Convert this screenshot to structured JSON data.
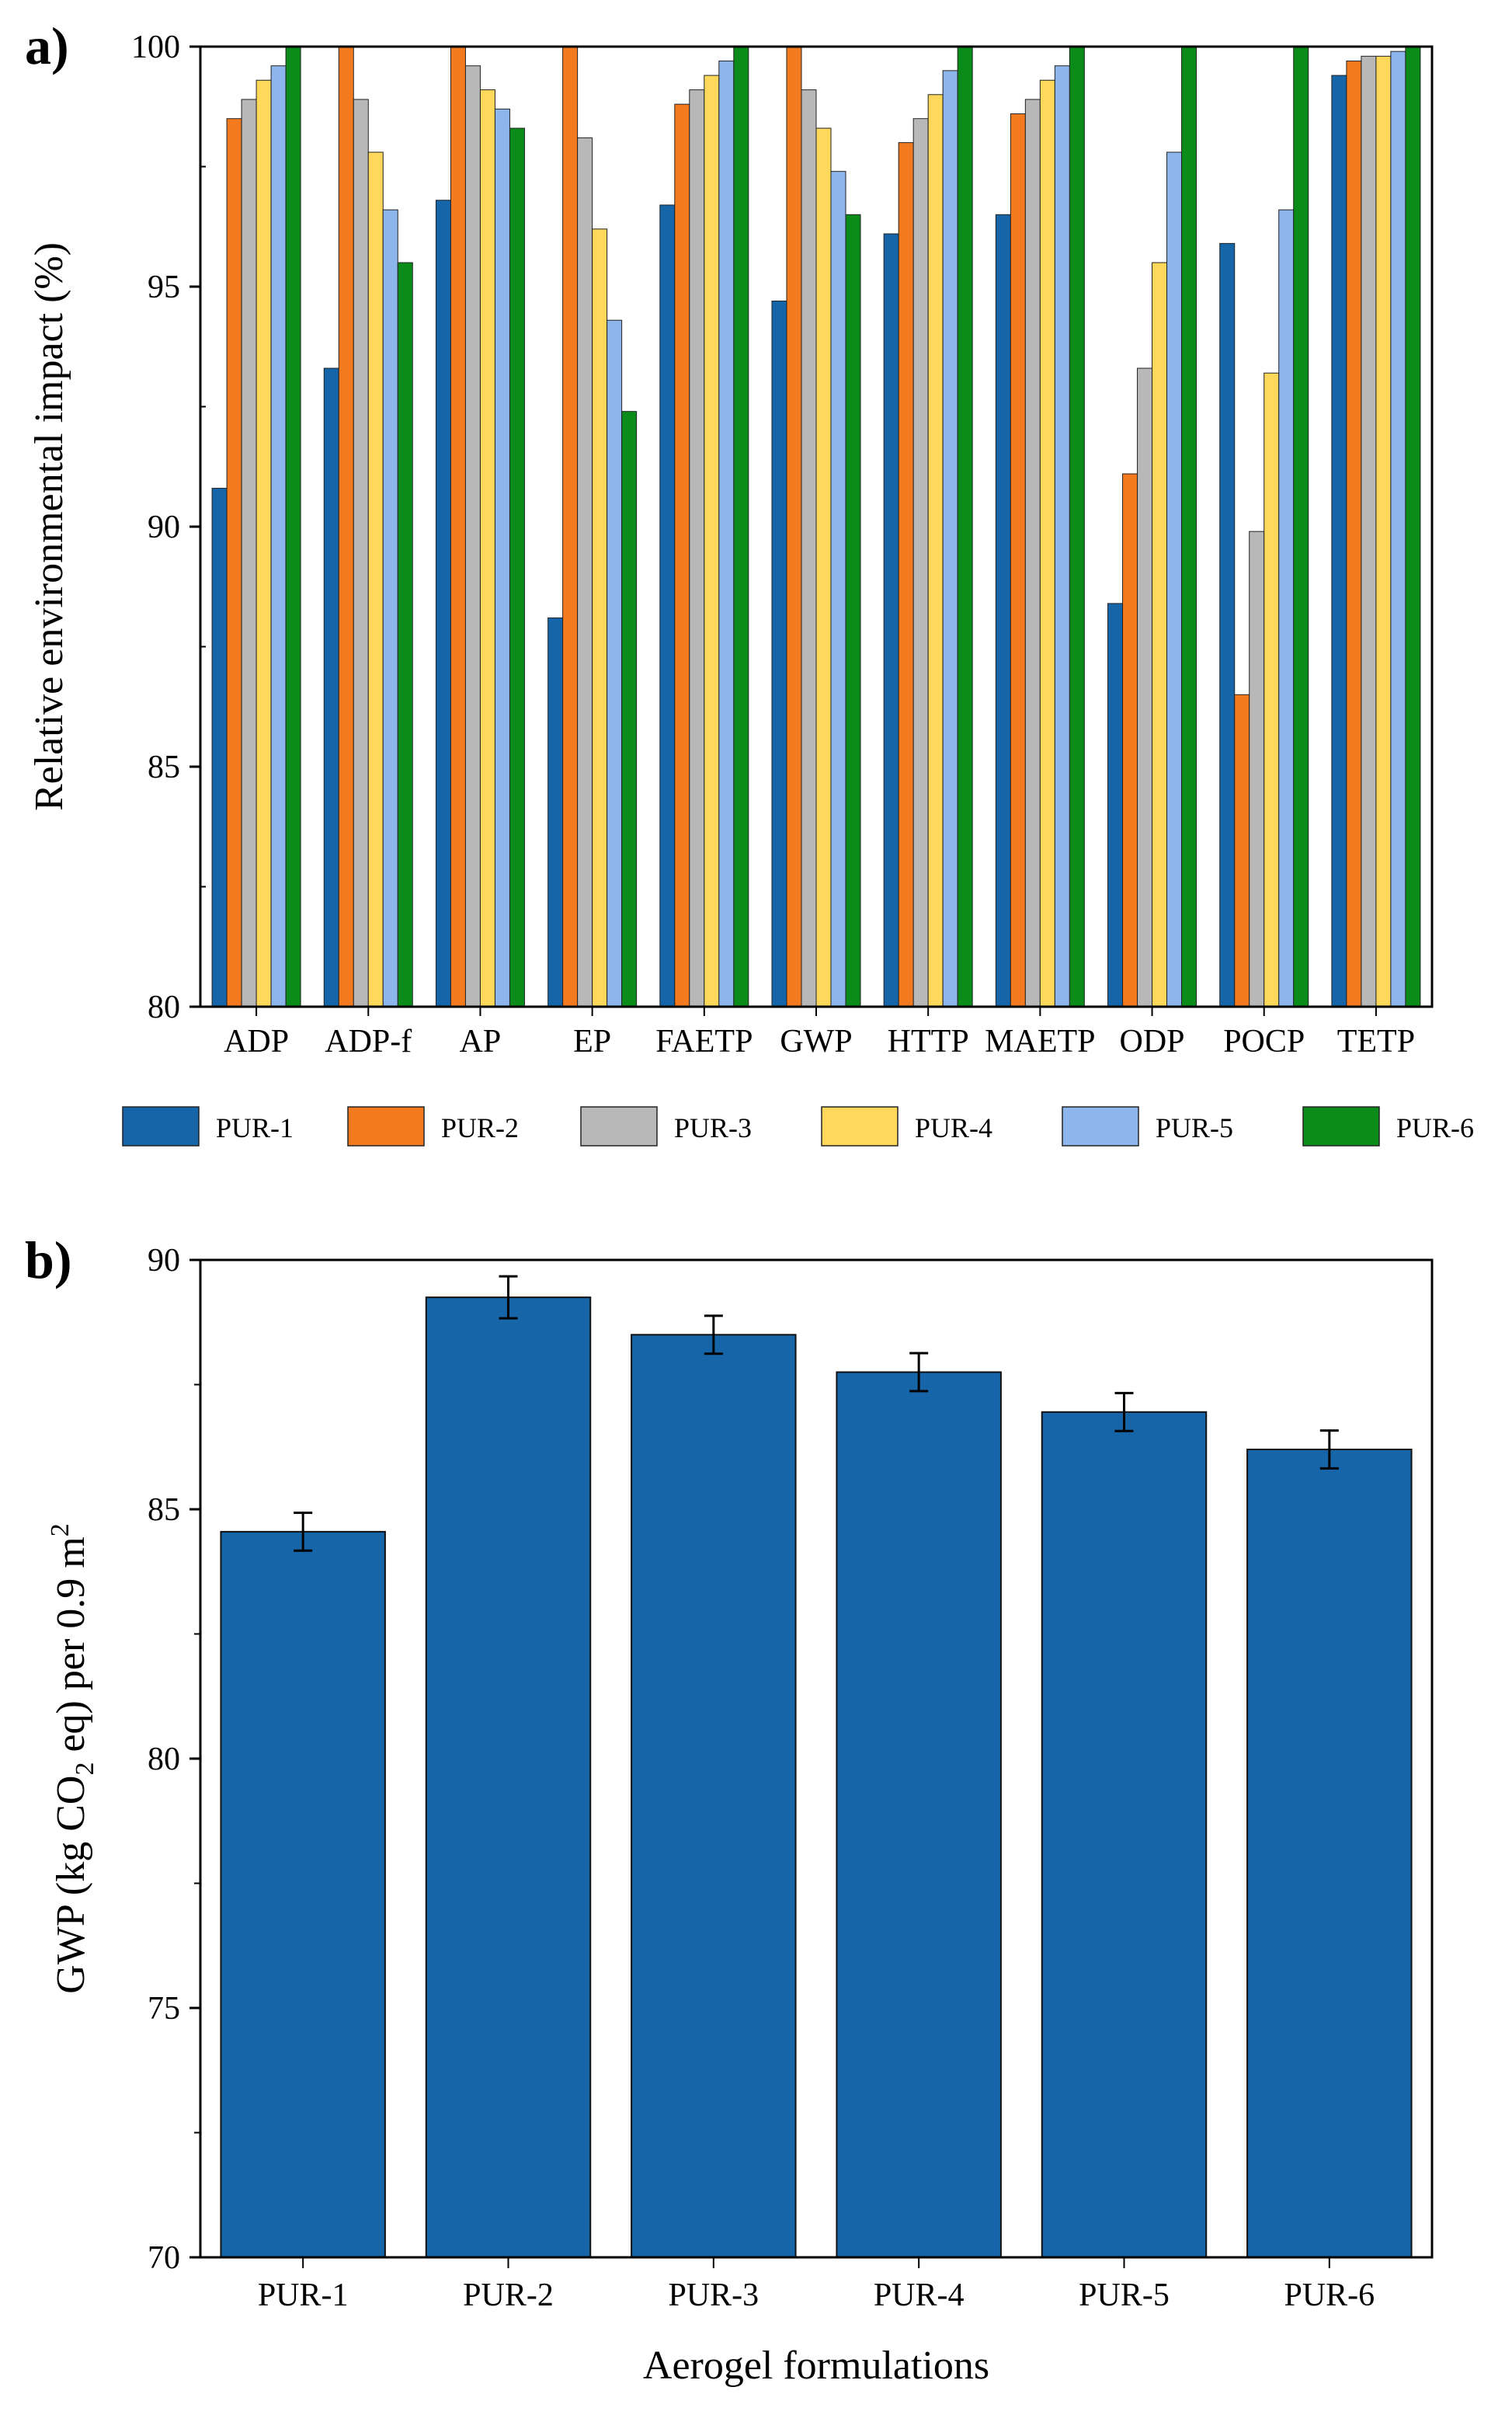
{
  "chart_data": [
    {
      "panel_label": "a)",
      "type": "bar",
      "title": "",
      "xlabel": "",
      "ylabel": "Relative environmental impact (%)",
      "ylim": [
        80,
        100
      ],
      "yticks": [
        "80",
        "85",
        "90",
        "95",
        "100"
      ],
      "grid": false,
      "legend_placement": "bottom",
      "categories": [
        "ADP",
        "ADP-f",
        "AP",
        "EP",
        "FAETP",
        "GWP",
        "HTTP",
        "MAETP",
        "ODP",
        "POCP",
        "TETP"
      ],
      "series": [
        {
          "name": "PUR-1",
          "color": "#1565a8",
          "values": [
            90.8,
            93.3,
            96.8,
            88.1,
            96.7,
            94.7,
            96.1,
            96.5,
            88.4,
            95.9,
            99.4
          ]
        },
        {
          "name": "PUR-2",
          "color": "#f47a1f",
          "values": [
            98.5,
            100,
            100,
            100,
            98.8,
            100,
            98.0,
            98.6,
            91.1,
            86.5,
            99.7
          ]
        },
        {
          "name": "PUR-3",
          "color": "#b8b8b8",
          "values": [
            98.9,
            98.9,
            99.6,
            98.1,
            99.1,
            99.1,
            98.5,
            98.9,
            93.3,
            89.9,
            99.8
          ]
        },
        {
          "name": "PUR-4",
          "color": "#fdd85a",
          "values": [
            99.3,
            97.8,
            99.1,
            96.2,
            99.4,
            98.3,
            99.0,
            99.3,
            95.5,
            93.2,
            99.8
          ]
        },
        {
          "name": "PUR-5",
          "color": "#8db6ec",
          "values": [
            99.6,
            96.6,
            98.7,
            94.3,
            99.7,
            97.4,
            99.5,
            99.6,
            97.8,
            96.6,
            99.9
          ]
        },
        {
          "name": "PUR-6",
          "color": "#0a8b1a",
          "values": [
            100,
            95.5,
            98.3,
            92.4,
            100,
            96.5,
            100,
            100,
            100,
            100,
            100
          ]
        }
      ]
    },
    {
      "panel_label": "b)",
      "type": "bar",
      "title": "",
      "xlabel": "Aerogel formulations",
      "ylabel_parts": {
        "pre": "GWP (kg CO",
        "sub": "2",
        "mid": " eq) per 0.9 m",
        "sup": "2"
      },
      "ylim": [
        70,
        90
      ],
      "yticks": [
        "70",
        "75",
        "80",
        "85",
        "90"
      ],
      "grid": false,
      "bar_color": "#1565a8",
      "categories": [
        "PUR-1",
        "PUR-2",
        "PUR-3",
        "PUR-4",
        "PUR-5",
        "PUR-6"
      ],
      "values": [
        84.55,
        89.25,
        88.5,
        87.75,
        86.95,
        86.2
      ],
      "errors": [
        0.38,
        0.42,
        0.38,
        0.38,
        0.38,
        0.38
      ]
    }
  ]
}
